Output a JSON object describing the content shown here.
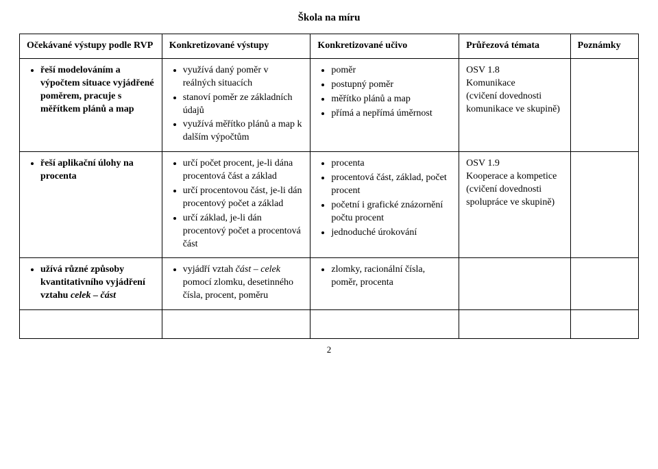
{
  "doc_title": "Škola na míru",
  "headers": {
    "c1": "Očekávané výstupy podle RVP",
    "c2": "Konkretizované výstupy",
    "c3": "Konkretizované učivo",
    "c4": "Průřezová témata",
    "c5": "Poznámky"
  },
  "row1": {
    "col1": [
      "řeší modelováním a výpočtem situace vyjádřené poměrem, pracuje s měřítkem plánů a map"
    ],
    "col2": [
      "využívá daný poměr v reálných situacích",
      "stanoví poměr ze základních údajů",
      "využívá měřítko plánů a map k dalším výpočtům"
    ],
    "col3": [
      "poměr",
      "postupný poměr",
      "měřítko plánů a map",
      "přímá a nepřímá úměrnost"
    ],
    "col4": "OSV 1.8\nKomunikace\n(cvičení dovednosti komunikace ve skupině)"
  },
  "row2": {
    "col1": [
      "řeší aplikační úlohy na procenta"
    ],
    "col2": [
      "určí počet procent, je-li dána procentová část a základ",
      "určí procentovou část, je-li dán procentový počet a základ",
      "určí základ, je-li dán procentový počet a procentová část"
    ],
    "col3": [
      "procenta",
      "procentová část, základ, počet procent",
      "početní i grafické znázornění počtu procent",
      "jednoduché úrokování"
    ],
    "col4": "OSV 1.9\nKooperace a kompetice\n(cvičení dovednosti spolupráce ve skupině)"
  },
  "row3": {
    "col1_html": "užívá různé způsoby kvantitativního vyjádření vztahu <i>celek – část</i>",
    "col2_html": "vyjádří vztah <i>část – celek</i> pomocí zlomku, desetinného čísla, procent, poměru",
    "col3": [
      "zlomky, racionální čísla, poměr, procenta"
    ]
  },
  "page_number": "2"
}
